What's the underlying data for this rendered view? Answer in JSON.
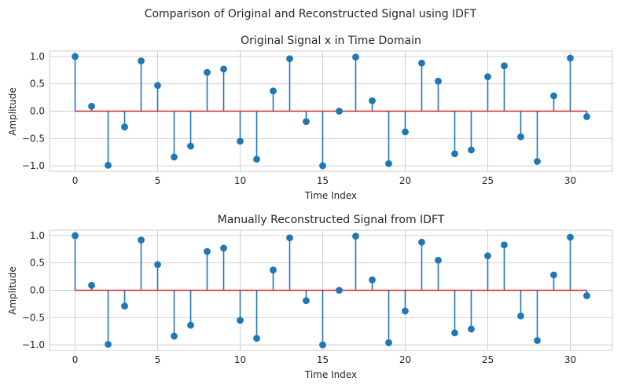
{
  "figure": {
    "suptitle": "Comparison of Original and Reconstructed Signal using IDFT"
  },
  "colors": {
    "stem": "#1f77b4",
    "baseline": "#d62728",
    "grid": "#cccccc",
    "axes_edge": "#cccccc",
    "text": "#262626"
  },
  "chart_data": [
    {
      "type": "stem",
      "title": "Original Signal x in Time Domain",
      "xlabel": "Time Index",
      "ylabel": "Amplitude",
      "xlim": [
        -1.55,
        32.55
      ],
      "ylim": [
        -1.1,
        1.1
      ],
      "xticks": [
        0,
        5,
        10,
        15,
        20,
        25,
        30
      ],
      "yticks": [
        -1.0,
        -0.5,
        0.0,
        0.5,
        1.0
      ],
      "ytick_labels": [
        "−1.0",
        "−0.5",
        "0.0",
        "0.5",
        "1.0"
      ],
      "grid": true,
      "baseline": 0,
      "x": [
        0,
        1,
        2,
        3,
        4,
        5,
        6,
        7,
        8,
        9,
        10,
        11,
        12,
        13,
        14,
        15,
        16,
        17,
        18,
        19,
        20,
        21,
        22,
        23,
        24,
        25,
        26,
        27,
        28,
        29,
        30,
        31
      ],
      "y": [
        1.0,
        0.09,
        -0.99,
        -0.29,
        0.92,
        0.47,
        -0.84,
        -0.64,
        0.71,
        0.77,
        -0.55,
        -0.88,
        0.37,
        0.96,
        -0.19,
        -1.0,
        0.0,
        0.99,
        0.19,
        -0.96,
        -0.38,
        0.88,
        0.55,
        -0.78,
        -0.71,
        0.63,
        0.83,
        -0.47,
        -0.92,
        0.28,
        0.97,
        -0.1
      ]
    },
    {
      "type": "stem",
      "title": "Manually Reconstructed Signal from IDFT",
      "xlabel": "Time Index",
      "ylabel": "Amplitude",
      "xlim": [
        -1.55,
        32.55
      ],
      "ylim": [
        -1.1,
        1.1
      ],
      "xticks": [
        0,
        5,
        10,
        15,
        20,
        25,
        30
      ],
      "yticks": [
        -1.0,
        -0.5,
        0.0,
        0.5,
        1.0
      ],
      "ytick_labels": [
        "−1.0",
        "−0.5",
        "0.0",
        "0.5",
        "1.0"
      ],
      "grid": true,
      "baseline": 0,
      "x": [
        0,
        1,
        2,
        3,
        4,
        5,
        6,
        7,
        8,
        9,
        10,
        11,
        12,
        13,
        14,
        15,
        16,
        17,
        18,
        19,
        20,
        21,
        22,
        23,
        24,
        25,
        26,
        27,
        28,
        29,
        30,
        31
      ],
      "y": [
        1.0,
        0.09,
        -0.99,
        -0.29,
        0.92,
        0.47,
        -0.84,
        -0.64,
        0.71,
        0.77,
        -0.55,
        -0.88,
        0.37,
        0.96,
        -0.19,
        -1.0,
        0.0,
        0.99,
        0.19,
        -0.96,
        -0.38,
        0.88,
        0.55,
        -0.78,
        -0.71,
        0.63,
        0.83,
        -0.47,
        -0.92,
        0.28,
        0.97,
        -0.1
      ]
    }
  ]
}
